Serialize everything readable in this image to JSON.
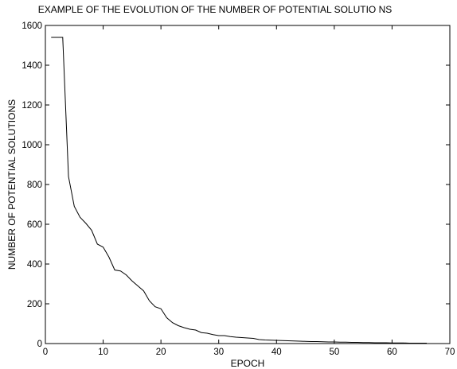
{
  "chart_data": {
    "type": "line",
    "title": "EXAMPLE OF THE EVOLUTION OF THE NUMBER OF POTENTIAL SOLUTIO NS",
    "xlabel": "EPOCH",
    "ylabel": "NUMBER OF POTENTIAL SOLUTIONS",
    "xlim": [
      0,
      70
    ],
    "ylim": [
      0,
      1600
    ],
    "xticks": [
      0,
      10,
      20,
      30,
      40,
      50,
      60,
      70
    ],
    "yticks": [
      0,
      200,
      400,
      600,
      800,
      1000,
      1200,
      1400,
      1600
    ],
    "grid": false,
    "legend": "none",
    "line_color": "#000000",
    "series": [
      {
        "x": [
          1,
          2,
          3,
          4,
          5,
          6,
          7,
          8,
          9,
          10,
          11,
          12,
          13,
          14,
          15,
          16,
          17,
          18,
          19,
          20,
          21,
          22,
          23,
          24,
          25,
          26,
          27,
          28,
          29,
          30,
          31,
          32,
          33,
          34,
          35,
          36,
          37,
          38,
          39,
          40,
          41,
          42,
          43,
          44,
          45,
          46,
          47,
          48,
          49,
          50,
          51,
          52,
          53,
          54,
          55,
          56,
          57,
          58,
          59,
          60,
          61,
          62,
          63,
          64,
          65,
          66
        ],
        "y": [
          1540,
          1540,
          1540,
          840,
          690,
          635,
          605,
          570,
          500,
          485,
          435,
          370,
          365,
          345,
          315,
          290,
          265,
          215,
          185,
          175,
          130,
          105,
          90,
          80,
          72,
          68,
          55,
          52,
          45,
          40,
          40,
          35,
          32,
          30,
          28,
          26,
          20,
          18,
          17,
          16,
          15,
          14,
          13,
          12,
          11,
          10,
          10,
          9,
          8,
          8,
          7,
          7,
          6,
          6,
          5,
          5,
          4,
          4,
          4,
          3,
          3,
          3,
          2,
          2,
          2,
          2
        ]
      }
    ]
  }
}
